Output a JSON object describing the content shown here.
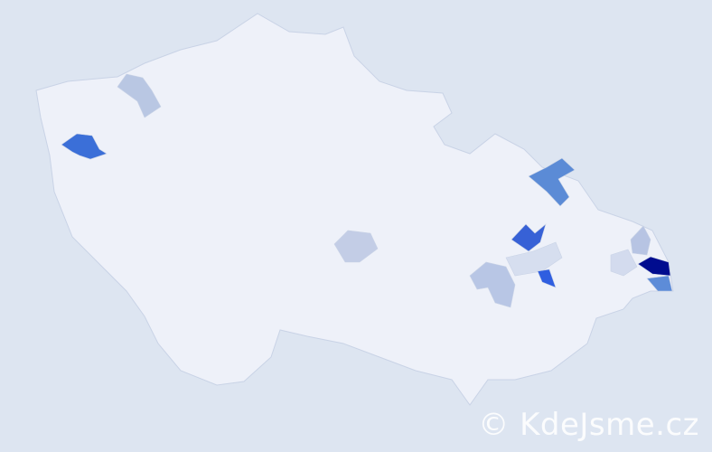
{
  "watermark": "© KdeJsme.cz",
  "colors": {
    "background": "#dde5f1",
    "base_region": "#eef1f9",
    "border": "#c9d3e6"
  },
  "highlighted_regions": [
    {
      "color": "#3b6fd8"
    },
    {
      "color": "#b9c7e3"
    },
    {
      "color": "#5b8bd6"
    },
    {
      "color": "#3761d6"
    },
    {
      "color": "#c3cde6"
    },
    {
      "color": "#b8c6e5"
    },
    {
      "color": "#d6deef"
    },
    {
      "color": "#2f5ee0"
    },
    {
      "color": "#000c8f"
    },
    {
      "color": "#5d8cd8"
    },
    {
      "color": "#b7c4e3"
    },
    {
      "color": "#d3dbee"
    }
  ]
}
